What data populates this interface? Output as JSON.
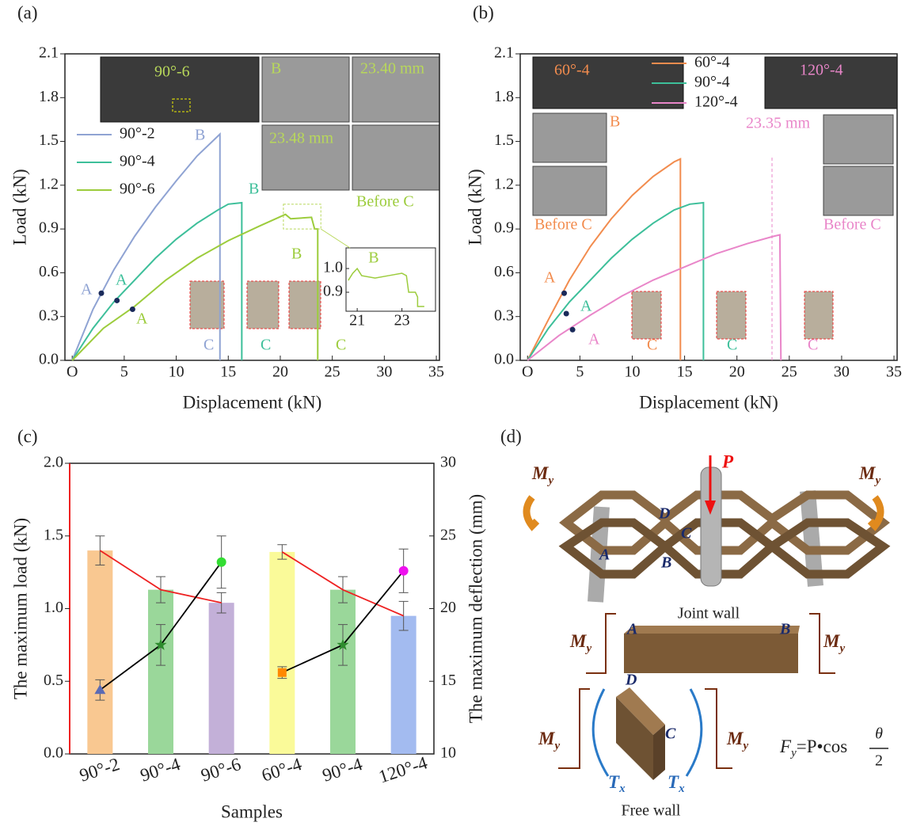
{
  "chart_data": [
    {
      "type": "line",
      "label": "(a)",
      "x_label": "Displacement (kN)",
      "y_label": "Load (kN)",
      "xlim": [
        -0.7,
        35.3
      ],
      "ylim": [
        0,
        2.1
      ],
      "xticks": [
        {
          "value": 0,
          "label": "O"
        },
        5,
        10,
        15,
        20,
        25,
        30,
        35
      ],
      "yticks": [
        {
          "value": 0,
          "label": "0.0"
        },
        0.3,
        0.6,
        0.9,
        1.2,
        1.5,
        1.8,
        2.1
      ],
      "legend": "upper left",
      "series": [
        {
          "name": "90°-2",
          "color": "#8fa3d3",
          "x": [
            0,
            2,
            4,
            6,
            8,
            10,
            12,
            14.2,
            14.2
          ],
          "values": [
            0,
            0.35,
            0.62,
            0.85,
            1.05,
            1.23,
            1.4,
            1.55,
            0
          ]
        },
        {
          "name": "90°-4",
          "color": "#3dbf9a",
          "x": [
            0,
            2,
            4,
            6,
            8,
            10,
            12,
            14,
            15,
            16.3,
            16.3
          ],
          "values": [
            0,
            0.22,
            0.4,
            0.55,
            0.7,
            0.83,
            0.94,
            1.03,
            1.07,
            1.08,
            0
          ]
        },
        {
          "name": "90°-6",
          "color": "#9ccc3c",
          "x": [
            0,
            3,
            6,
            9,
            12,
            15,
            18,
            20.5,
            21,
            23,
            23.3,
            23.6,
            23.6
          ],
          "values": [
            0,
            0.22,
            0.37,
            0.55,
            0.7,
            0.82,
            0.92,
            1.0,
            0.97,
            0.98,
            0.9,
            0.9,
            0
          ]
        }
      ],
      "points": {
        "color": "#1a2a5a",
        "x": [
          2.8,
          4.3,
          5.8
        ],
        "values": [
          0.46,
          0.41,
          0.35
        ]
      },
      "annotations": [
        {
          "text": "A",
          "color": "#8fa3d3"
        },
        {
          "text": "A",
          "color": "#3dbf9a"
        },
        {
          "text": "A",
          "color": "#9ccc3c"
        },
        {
          "text": "B",
          "color": "#8fa3d3"
        },
        {
          "text": "B",
          "color": "#3dbf9a"
        },
        {
          "text": "B",
          "color": "#9ccc3c"
        },
        {
          "text": "C",
          "color": "#8fa3d3"
        },
        {
          "text": "C",
          "color": "#3dbf9a"
        },
        {
          "text": "C",
          "color": "#9ccc3c"
        }
      ],
      "image_labels": [
        "90°-6",
        "B",
        "23.40 mm",
        "23.48 mm",
        "Before C"
      ],
      "inset": {
        "xlim": [
          20.5,
          24.5
        ],
        "ylim": [
          0.82,
          1.087
        ],
        "xticks": [
          21,
          23
        ],
        "yticks": [
          {
            "value": 1,
            "label": "1.0"
          },
          0.9
        ],
        "color": "#9ccc3c",
        "x": [
          20.6,
          20.8,
          21,
          21.2,
          21.8,
          22.4,
          23,
          23.2,
          23.3,
          23.6,
          23.7,
          23.7,
          24.0
        ],
        "values": [
          0.95,
          0.98,
          1.0,
          0.97,
          0.96,
          0.97,
          0.98,
          0.97,
          0.9,
          0.9,
          0.88,
          0.84,
          0.84
        ],
        "annotation": "B"
      }
    },
    {
      "type": "line",
      "label": "(b)",
      "x_label": "Displacement (kN)",
      "y_label": "Load (kN)",
      "xlim": [
        -0.7,
        35.3
      ],
      "ylim": [
        0,
        2.1
      ],
      "xticks": [
        {
          "value": 0,
          "label": "O"
        },
        5,
        10,
        15,
        20,
        25,
        30,
        35
      ],
      "yticks": [
        {
          "value": 0,
          "label": "0.0"
        },
        0.3,
        0.6,
        0.9,
        1.2,
        1.5,
        1.8,
        2.1
      ],
      "legend": "upper center",
      "series": [
        {
          "name": "60°-4",
          "color": "#f28c4e",
          "x": [
            0,
            2,
            4,
            6,
            8,
            10,
            12,
            14,
            14.6,
            14.6
          ],
          "values": [
            0,
            0.28,
            0.55,
            0.78,
            0.97,
            1.13,
            1.26,
            1.36,
            1.38,
            0
          ]
        },
        {
          "name": "90°-4",
          "color": "#3dbf9a",
          "x": [
            0,
            2,
            4,
            6,
            8,
            10,
            12,
            14,
            15.5,
            16.8,
            16.8
          ],
          "values": [
            0,
            0.22,
            0.4,
            0.55,
            0.7,
            0.83,
            0.94,
            1.03,
            1.07,
            1.08,
            0
          ]
        },
        {
          "name": "120°-4",
          "color": "#e986c9",
          "x": [
            0,
            3,
            6,
            9,
            12,
            15,
            18,
            21,
            23.5,
            24.1,
            24.2
          ],
          "values": [
            0,
            0.17,
            0.31,
            0.44,
            0.55,
            0.64,
            0.73,
            0.8,
            0.85,
            0.86,
            0
          ]
        }
      ],
      "points": {
        "color": "#1a2a5a",
        "x": [
          3.5,
          3.7,
          4.3
        ],
        "values": [
          0.46,
          0.32,
          0.21
        ]
      },
      "dashed_x": 23.35,
      "dashed_color": "#e986c9",
      "annotations": [
        {
          "text": "A",
          "color": "#f28c4e"
        },
        {
          "text": "A",
          "color": "#3dbf9a"
        },
        {
          "text": "A",
          "color": "#e986c9"
        },
        {
          "text": "C",
          "color": "#f28c4e"
        },
        {
          "text": "C",
          "color": "#3dbf9a"
        },
        {
          "text": "C",
          "color": "#e986c9"
        }
      ],
      "image_labels": [
        "60°-4",
        "120°-4",
        "B",
        "Before C",
        "23.35 mm",
        "Before C"
      ]
    },
    {
      "type": "bar",
      "label": "(c)",
      "x_label": "Samples",
      "y_label": "The maximum load (kN)",
      "y2_label": "The maximum deflection (mm)",
      "categories": [
        "90°-2",
        "90°-4",
        "90°-6",
        "60°-4",
        "90°-4",
        "120°-4"
      ],
      "ylim": [
        0,
        2
      ],
      "yticks": [
        {
          "value": 0,
          "label": "0.0"
        },
        0.5,
        {
          "value": 1,
          "label": "1.0"
        },
        1.5,
        {
          "value": 2,
          "label": "2.0"
        }
      ],
      "y2lim": [
        10,
        30
      ],
      "y2ticks": [
        10,
        15,
        20,
        25,
        30
      ],
      "groups": [
        [
          0,
          1,
          2
        ],
        [
          3,
          4,
          5
        ]
      ],
      "series": [
        {
          "colors": [
            "#f9c891",
            "#9ad79a",
            "#c3b0d8",
            "#fafa99",
            "#9ad79a",
            "#a3bbf0"
          ],
          "line_color": "#ee2222",
          "values": [
            1.4,
            1.13,
            1.04,
            1.39,
            1.13,
            0.95
          ],
          "errors": [
            0.1,
            0.09,
            0.07,
            0.05,
            0.09,
            0.1
          ]
        },
        {
          "axis": "y2",
          "colors": [
            "#5b6bb5",
            "#2e8b2e",
            "#33dd33",
            "#ff8800",
            "#2e8b2e",
            "#ee11ee"
          ],
          "line_color": "#000000",
          "markers": [
            "triangle",
            "star",
            "circle",
            "square",
            "star",
            "circle"
          ],
          "values": [
            14.4,
            17.5,
            23.2,
            15.6,
            17.5,
            22.6
          ],
          "errors": [
            0.7,
            1.4,
            1.8,
            0.4,
            1.4,
            1.5
          ]
        }
      ]
    }
  ],
  "diagram": {
    "label": "(d)",
    "load": "P",
    "moment": "M",
    "moment_sub": "y",
    "points": [
      "A",
      "B",
      "C",
      "D"
    ],
    "joint_wall": "Joint wall",
    "free_wall": "Free wall",
    "torque": "T",
    "torque_sub": "x",
    "formula": {
      "lhs": "F",
      "lhs_sub": "y",
      "rhs": "=P•cos",
      "num": "θ",
      "den": "2"
    }
  }
}
